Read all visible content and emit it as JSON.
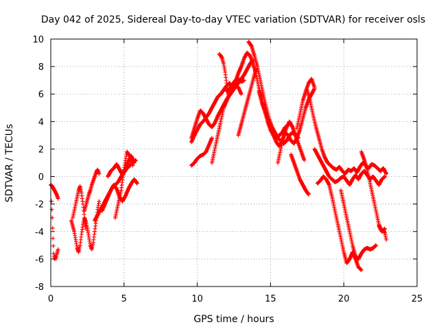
{
  "chart_data": {
    "type": "scatter",
    "title": "Day 042 of 2025, Sidereal Day-to-day VTEC variation (SDTVAR) for receiver osls",
    "xlabel": "GPS time / hours",
    "ylabel": "SDTVAR / TECUs",
    "xlim": [
      0,
      25
    ],
    "ylim": [
      -8,
      10
    ],
    "xticks": [
      0,
      5,
      10,
      15,
      20,
      25
    ],
    "yticks": [
      -8,
      -6,
      -4,
      -2,
      0,
      2,
      4,
      6,
      8,
      10
    ],
    "grid": true,
    "marker": "plus",
    "color": "#ff0000",
    "series": [
      {
        "x": [
          0.0,
          0.1,
          0.2,
          0.3,
          0.4,
          0.5
        ],
        "y": [
          -0.6,
          -0.7,
          -0.9,
          -1.1,
          -1.3,
          -1.6
        ]
      },
      {
        "x": [
          0.05,
          0.1,
          0.15,
          0.2,
          0.25,
          0.3,
          0.35,
          0.4,
          0.45,
          0.5
        ],
        "y": [
          -1.8,
          -3.0,
          -4.5,
          -5.6,
          -6.0,
          -5.8,
          -6.0,
          -5.7,
          -5.5,
          -5.3
        ]
      },
      {
        "x": [
          1.4,
          1.5,
          1.6,
          1.7,
          1.8,
          1.9,
          2.0,
          2.1,
          2.2,
          2.3,
          2.4,
          2.5,
          2.6,
          2.7,
          2.8,
          2.9,
          3.0,
          3.1,
          3.2,
          3.3
        ],
        "y": [
          -3.2,
          -3.6,
          -4.0,
          -4.6,
          -5.2,
          -5.5,
          -5.0,
          -4.2,
          -3.5,
          -3.0,
          -3.3,
          -3.8,
          -4.4,
          -5.0,
          -5.3,
          -4.8,
          -4.0,
          -3.2,
          -2.4,
          -1.8
        ]
      },
      {
        "x": [
          1.5,
          1.6,
          1.7,
          1.8,
          1.9,
          2.0,
          2.1,
          2.2,
          2.3,
          2.4
        ],
        "y": [
          -3.0,
          -2.5,
          -2.0,
          -1.5,
          -1.0,
          -0.7,
          -1.2,
          -2.0,
          -3.0,
          -3.8
        ]
      },
      {
        "x": [
          2.3,
          2.4,
          2.5,
          2.6,
          2.7,
          2.8,
          2.9,
          3.0,
          3.1,
          3.2,
          3.3
        ],
        "y": [
          -2.5,
          -2.1,
          -1.7,
          -1.3,
          -1.0,
          -0.6,
          -0.3,
          0.0,
          0.3,
          0.5,
          0.2
        ]
      },
      {
        "x": [
          3.0,
          3.2,
          3.4,
          3.6,
          3.8,
          4.0,
          4.2,
          4.4,
          4.6,
          4.8,
          5.0,
          5.2,
          5.4,
          5.6,
          5.8
        ],
        "y": [
          -3.2,
          -2.8,
          -2.4,
          -2.0,
          -1.6,
          -1.2,
          -0.8,
          -0.6,
          -0.4,
          0.0,
          0.3,
          0.6,
          0.8,
          1.0,
          1.2
        ]
      },
      {
        "x": [
          3.5,
          3.7,
          3.9,
          4.1,
          4.3,
          4.5,
          4.7,
          4.9,
          5.1,
          5.3,
          5.5,
          5.7,
          5.9
        ],
        "y": [
          -2.5,
          -2.0,
          -1.5,
          -1.0,
          -0.6,
          -0.9,
          -1.5,
          -1.8,
          -1.4,
          -0.9,
          -0.5,
          -0.2,
          -0.5
        ]
      },
      {
        "x": [
          3.9,
          4.1,
          4.3,
          4.5,
          4.7,
          4.9,
          5.1,
          5.3,
          5.5,
          5.7
        ],
        "y": [
          0.0,
          0.4,
          0.6,
          0.9,
          0.5,
          0.1,
          0.6,
          1.1,
          1.5,
          1.0
        ]
      },
      {
        "x": [
          4.4,
          4.6,
          4.8,
          5.0,
          5.2,
          5.4,
          5.6
        ],
        "y": [
          -3.0,
          -2.0,
          -1.0,
          0.5,
          1.8,
          1.5,
          0.8
        ]
      },
      {
        "x": [
          9.6,
          9.8,
          10.0,
          10.2,
          10.4,
          10.6,
          10.8,
          11.0,
          11.2,
          11.4,
          11.6,
          11.8,
          12.0,
          12.2,
          12.4,
          12.6,
          12.8,
          13.0,
          13.2,
          13.4,
          13.6,
          13.8,
          14.0,
          14.2,
          14.4,
          14.6,
          14.8,
          15.0,
          15.2,
          15.4,
          15.6,
          15.8,
          16.0
        ],
        "y": [
          2.5,
          3.0,
          3.4,
          3.8,
          4.0,
          4.3,
          4.6,
          5.0,
          5.4,
          5.8,
          6.0,
          6.3,
          6.6,
          6.8,
          6.5,
          6.9,
          7.5,
          8.0,
          8.6,
          9.0,
          8.8,
          8.2,
          7.5,
          6.5,
          5.6,
          4.8,
          4.0,
          3.4,
          3.0,
          2.8,
          3.0,
          3.2,
          3.6
        ]
      },
      {
        "x": [
          9.6,
          9.8,
          10.0,
          10.2,
          10.4,
          10.6,
          10.8,
          11.0,
          11.2,
          11.4,
          11.6,
          11.8,
          12.0,
          12.2,
          12.4,
          12.6,
          12.8,
          13.0,
          13.2,
          13.4,
          13.6,
          13.8
        ],
        "y": [
          2.8,
          3.5,
          4.2,
          4.8,
          4.6,
          4.2,
          3.8,
          3.6,
          3.9,
          4.4,
          4.8,
          5.2,
          5.6,
          5.9,
          6.2,
          6.5,
          6.8,
          7.1,
          7.4,
          7.8,
          8.2,
          8.5
        ]
      },
      {
        "x": [
          9.6,
          9.8,
          10.0,
          10.2,
          10.4,
          10.6,
          10.8,
          11.0
        ],
        "y": [
          0.8,
          1.0,
          1.3,
          1.5,
          1.6,
          1.8,
          2.3,
          2.8
        ]
      },
      {
        "x": [
          11.0,
          11.2,
          11.4,
          11.6,
          11.8,
          12.0,
          12.2,
          12.4,
          12.6,
          12.8,
          13.0
        ],
        "y": [
          1.0,
          2.0,
          3.0,
          4.0,
          5.0,
          5.5,
          6.0,
          6.4,
          6.6,
          6.5,
          6.0
        ]
      },
      {
        "x": [
          11.5,
          11.6,
          11.7,
          11.8,
          11.9,
          12.0,
          12.1
        ],
        "y": [
          8.9,
          8.8,
          8.6,
          8.2,
          7.6,
          6.8,
          6.0
        ]
      },
      {
        "x": [
          12.0,
          12.2,
          12.4,
          12.6,
          12.8,
          13.0,
          13.2
        ],
        "y": [
          6.2,
          6.4,
          6.7,
          7.0,
          7.1,
          6.9,
          7.0
        ]
      },
      {
        "x": [
          12.8,
          13.0,
          13.2,
          13.4,
          13.6,
          13.8,
          14.0
        ],
        "y": [
          3.0,
          3.8,
          4.6,
          5.4,
          6.2,
          7.0,
          7.8
        ]
      },
      {
        "x": [
          13.5,
          13.7,
          13.9,
          14.1,
          14.3,
          14.5,
          14.7,
          14.9,
          15.1,
          15.3,
          15.5,
          15.7,
          15.9,
          16.1,
          16.3,
          16.5,
          16.7,
          16.9
        ],
        "y": [
          9.8,
          9.5,
          8.8,
          8.0,
          7.0,
          6.0,
          5.0,
          4.2,
          3.6,
          3.2,
          2.8,
          2.6,
          2.4,
          2.6,
          3.0,
          3.2,
          3.0,
          2.8
        ]
      },
      {
        "x": [
          14.2,
          14.4,
          14.6,
          14.8,
          15.0,
          15.2,
          15.4,
          15.6,
          15.8,
          16.0,
          16.2,
          16.4,
          16.6,
          16.8,
          17.0,
          17.2,
          17.4,
          17.6,
          17.8,
          18.0
        ],
        "y": [
          6.2,
          5.4,
          4.8,
          4.2,
          3.6,
          3.0,
          2.5,
          2.2,
          2.6,
          3.2,
          3.0,
          2.6,
          2.4,
          2.8,
          3.4,
          4.2,
          5.0,
          5.6,
          6.0,
          6.4
        ]
      },
      {
        "x": [
          15.5,
          15.7,
          15.9,
          16.1,
          16.3,
          16.5,
          16.7,
          16.9,
          17.1,
          17.3
        ],
        "y": [
          1.0,
          2.0,
          3.0,
          3.6,
          4.0,
          3.6,
          3.0,
          2.4,
          1.8,
          1.2
        ]
      },
      {
        "x": [
          16.4,
          16.6,
          16.8,
          17.0,
          17.2,
          17.4,
          17.6
        ],
        "y": [
          1.6,
          1.0,
          0.4,
          -0.2,
          -0.6,
          -1.0,
          -1.3
        ]
      },
      {
        "x": [
          16.8,
          17.0,
          17.2,
          17.4,
          17.6,
          17.8,
          18.0
        ],
        "y": [
          3.5,
          4.5,
          5.5,
          6.2,
          6.8,
          7.1,
          6.5
        ]
      },
      {
        "x": [
          17.5,
          17.7,
          17.9,
          18.1,
          18.3,
          18.5,
          18.7,
          18.9,
          19.1,
          19.3,
          19.5,
          19.7,
          19.9,
          20.1,
          20.3,
          20.5,
          20.7,
          20.9,
          21.1,
          21.3,
          21.5,
          21.7,
          21.9,
          22.1,
          22.3,
          22.5,
          22.7,
          22.9
        ],
        "y": [
          6.3,
          5.5,
          4.5,
          3.6,
          2.8,
          2.0,
          1.4,
          1.0,
          0.8,
          0.6,
          0.5,
          0.7,
          0.4,
          0.2,
          0.5,
          0.4,
          0.6,
          0.3,
          0.7,
          1.0,
          0.8,
          0.6,
          0.9,
          0.8,
          0.6,
          0.4,
          0.6,
          0.2
        ]
      },
      {
        "x": [
          18.0,
          18.2,
          18.4,
          18.6,
          18.8,
          19.0,
          19.2,
          19.4,
          19.6,
          19.8,
          20.0,
          20.2,
          20.4,
          20.6,
          20.8,
          21.0,
          21.2,
          21.4,
          21.6,
          21.8,
          22.0,
          22.2,
          22.4,
          22.6,
          22.8
        ],
        "y": [
          2.0,
          1.6,
          1.2,
          0.8,
          0.4,
          0.0,
          -0.2,
          -0.4,
          -0.3,
          -0.1,
          0.0,
          -0.3,
          -0.6,
          -0.2,
          0.1,
          -0.2,
          0.2,
          0.4,
          0.1,
          -0.2,
          0.0,
          -0.3,
          -0.6,
          -0.2,
          0.0
        ]
      },
      {
        "x": [
          18.2,
          18.4,
          18.6,
          18.8,
          19.0,
          19.2,
          19.4,
          19.6,
          19.8,
          20.0,
          20.2,
          20.4,
          20.6,
          20.8,
          21.0,
          21.2
        ],
        "y": [
          -0.5,
          -0.3,
          0.0,
          -0.2,
          -0.6,
          -1.5,
          -2.5,
          -3.5,
          -4.5,
          -5.5,
          -6.3,
          -6.0,
          -5.5,
          -6.0,
          -6.6,
          -6.8
        ]
      },
      {
        "x": [
          19.8,
          20.0,
          20.2,
          20.4,
          20.6,
          20.8,
          21.0,
          21.2,
          21.4,
          21.6,
          21.8,
          22.0,
          22.2
        ],
        "y": [
          -1.0,
          -2.0,
          -3.0,
          -4.0,
          -5.0,
          -5.8,
          -6.0,
          -5.6,
          -5.3,
          -5.2,
          -5.3,
          -5.2,
          -5.0
        ]
      },
      {
        "x": [
          21.2,
          21.4,
          21.6,
          21.8,
          22.0,
          22.2,
          22.4,
          22.6,
          22.8
        ],
        "y": [
          1.8,
          1.2,
          0.5,
          -0.5,
          -1.5,
          -2.5,
          -3.5,
          -4.0,
          -3.8
        ]
      },
      {
        "x": [
          22.4,
          22.5,
          22.6,
          22.7,
          22.8,
          22.9
        ],
        "y": [
          -3.6,
          -3.8,
          -4.0,
          -3.9,
          -4.1,
          -4.6
        ]
      }
    ]
  }
}
